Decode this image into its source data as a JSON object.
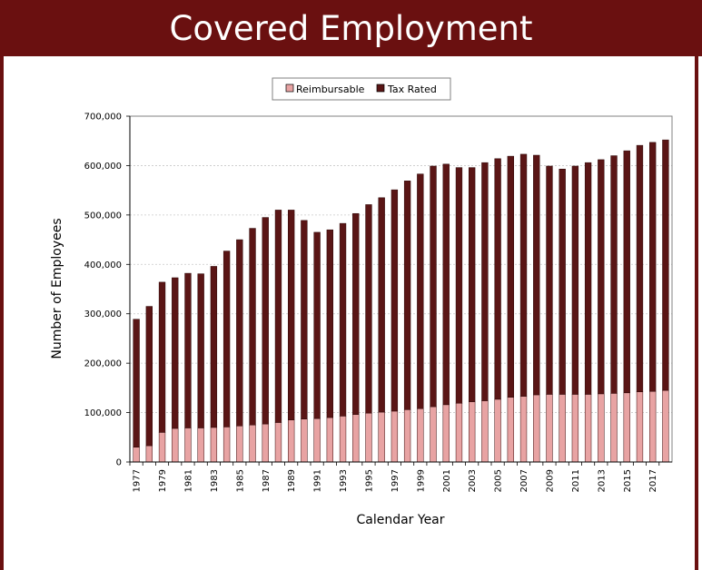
{
  "page": {
    "title": "Covered Employment"
  },
  "colors": {
    "header": "#6a1010",
    "reimbursable": "#e8a3a3",
    "tax_rated": "#5a1515",
    "grid": "#c8c8c8"
  },
  "chart_data": {
    "type": "bar",
    "stacked": true,
    "title": "Covered Employment",
    "xlabel": "Calendar Year",
    "ylabel": "Number of Employees",
    "ylim": [
      0,
      700000
    ],
    "yticks": [
      0,
      100000,
      200000,
      300000,
      400000,
      500000,
      600000,
      700000
    ],
    "ytick_labels": [
      "0",
      "100,000",
      "200,000",
      "300,000",
      "400,000",
      "500,000",
      "600,000",
      "700,000"
    ],
    "xtick_labels": [
      "1977",
      "1979",
      "1981",
      "1983",
      "1985",
      "1987",
      "1989",
      "1991",
      "1993",
      "1995",
      "1997",
      "1999",
      "2001",
      "2003",
      "2005",
      "2007",
      "2009",
      "2011",
      "2013",
      "2015",
      "2017"
    ],
    "grid": "horizontal",
    "legend_position": "top-center",
    "categories": [
      "1977",
      "1978",
      "1979",
      "1980",
      "1981",
      "1982",
      "1983",
      "1984",
      "1985",
      "1986",
      "1987",
      "1988",
      "1989",
      "1990",
      "1991",
      "1992",
      "1993",
      "1994",
      "1995",
      "1996",
      "1997",
      "1998",
      "1999",
      "2000",
      "2001",
      "2002",
      "2003",
      "2004",
      "2005",
      "2006",
      "2007",
      "2008",
      "2009",
      "2010",
      "2011",
      "2012",
      "2013",
      "2014",
      "2015",
      "2016",
      "2017",
      "2018"
    ],
    "series": [
      {
        "name": "Reimbursable",
        "values": [
          30000,
          33000,
          60000,
          68000,
          69000,
          69000,
          70000,
          71000,
          73000,
          75000,
          77000,
          80000,
          85000,
          87000,
          88000,
          90000,
          93000,
          96000,
          99000,
          101000,
          103000,
          106000,
          108000,
          112000,
          116000,
          119000,
          122000,
          124000,
          127000,
          131000,
          133000,
          136000,
          137000,
          137000,
          137000,
          137000,
          138000,
          139000,
          140000,
          142000,
          143000,
          145000
        ]
      },
      {
        "name": "Tax Rated",
        "values": [
          259000,
          282000,
          304000,
          305000,
          313000,
          312000,
          326000,
          356000,
          377000,
          398000,
          418000,
          430000,
          425000,
          402000,
          377000,
          380000,
          390000,
          407000,
          422000,
          434000,
          448000,
          463000,
          475000,
          487000,
          487000,
          477000,
          474000,
          482000,
          487000,
          488000,
          490000,
          485000,
          462000,
          456000,
          462000,
          469000,
          474000,
          481000,
          490000,
          499000,
          504000,
          507000
        ]
      }
    ]
  }
}
